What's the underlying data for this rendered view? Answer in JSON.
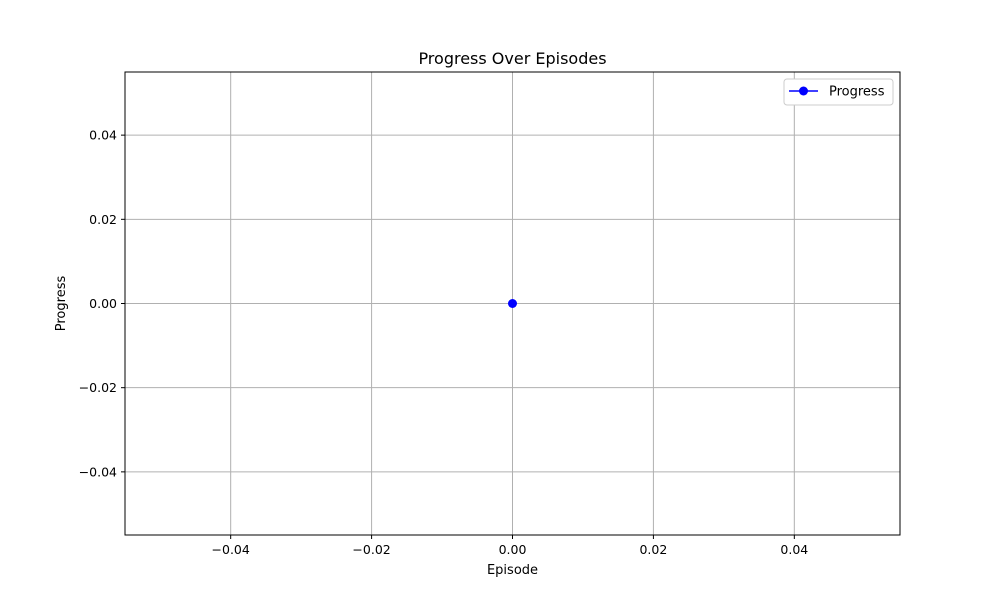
{
  "chart_data": {
    "type": "line",
    "title": "Progress Over Episodes",
    "xlabel": "Episode",
    "ylabel": "Progress",
    "xlim": [
      -0.055,
      0.055
    ],
    "ylim": [
      -0.055,
      0.055
    ],
    "xticks": [
      -0.04,
      -0.02,
      0.0,
      0.02,
      0.04
    ],
    "yticks": [
      -0.04,
      -0.02,
      0.0,
      0.02,
      0.04
    ],
    "xtick_labels": [
      "−0.04",
      "−0.02",
      "0.00",
      "0.02",
      "0.04"
    ],
    "ytick_labels": [
      "−0.04",
      "−0.02",
      "0.00",
      "0.02",
      "0.04"
    ],
    "grid": true,
    "legend_position": "top-right",
    "series": [
      {
        "name": "Progress",
        "color": "#0000ff",
        "marker": "circle",
        "x": [
          0
        ],
        "y": [
          0
        ]
      }
    ]
  }
}
